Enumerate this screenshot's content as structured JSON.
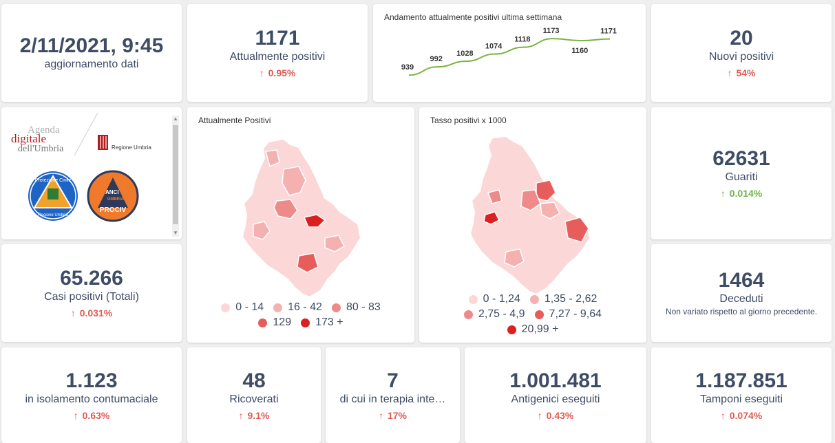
{
  "header": {
    "datetime": "2/11/2021, 9:45",
    "datetime_label": "aggiornamento dati"
  },
  "kpis": {
    "attualmente_positivi": {
      "value": "1171",
      "label": "Attualmente positivi",
      "trend": "0.95%"
    },
    "nuovi_positivi": {
      "value": "20",
      "label": "Nuovi positivi",
      "trend": "54%"
    },
    "guariti": {
      "value": "62631",
      "label": "Guariti",
      "trend": "0.014%"
    },
    "casi_totali": {
      "value": "65.266",
      "label": "Casi positivi (Totali)",
      "trend": "0.031%"
    },
    "deceduti": {
      "value": "1464",
      "label": "Deceduti",
      "note": "Non variato rispetto al giorno precedente."
    },
    "isolamento": {
      "value": "1.123",
      "label": "in isolamento contumaciale",
      "trend": "0.63%"
    },
    "ricoverati": {
      "value": "48",
      "label": "Ricoverati",
      "trend": "9.1%"
    },
    "terapia": {
      "value": "7",
      "label": "di cui in terapia inte…",
      "trend": "17%"
    },
    "antigenici": {
      "value": "1.001.481",
      "label": "Antigenici eseguiti",
      "trend": "0.43%"
    },
    "tamponi": {
      "value": "1.187.851",
      "label": "Tamponi eseguiti",
      "trend": "0.074%"
    }
  },
  "logos": {
    "agenda_line1": "Agenda",
    "agenda_line2": "digitale",
    "agenda_line3": "dell'Umbria",
    "regione": "Regione Umbria",
    "protezione_top": "Protezione Civile",
    "protezione_bottom": "Regione Umbria",
    "anci_line1": "ANCI",
    "anci_line2": "UMBRIA",
    "anci_line3": "PROCIV"
  },
  "map1": {
    "title": "Attualmente Positivi",
    "legend": [
      {
        "label": "0 - 14",
        "color": "#fbd7d7"
      },
      {
        "label": "16 - 42",
        "color": "#f5b1b0"
      },
      {
        "label": "80 - 83",
        "color": "#ee8a89"
      },
      {
        "label": "129",
        "color": "#e65d5c"
      },
      {
        "label": "173 +",
        "color": "#dc1f1f"
      }
    ]
  },
  "map2": {
    "title": "Tasso positivi x 1000",
    "legend": [
      {
        "label": "0 - 1,24",
        "color": "#fbd7d7"
      },
      {
        "label": "1,35 - 2,62",
        "color": "#f5b1b0"
      },
      {
        "label": "2,75 - 4,9",
        "color": "#ee8a89"
      },
      {
        "label": "7,27 - 9,64",
        "color": "#e65d5c"
      },
      {
        "label": "20,99 +",
        "color": "#dc1f1f"
      }
    ]
  },
  "chart_data": {
    "type": "line",
    "title": "Andamento attualmente positivi ultima settimana",
    "values": [
      939,
      992,
      1028,
      1074,
      1118,
      1173,
      1160,
      1171
    ],
    "data_labels": [
      "939",
      "992",
      "1028",
      "1074",
      "1118",
      "1173",
      "1160",
      "1171"
    ],
    "color": "#7cb342",
    "ylim": [
      900,
      1200
    ]
  },
  "colors": {
    "trend_up_red": "#e05a54",
    "trend_up_green": "#6cb24a",
    "text": "#3e4c66"
  }
}
